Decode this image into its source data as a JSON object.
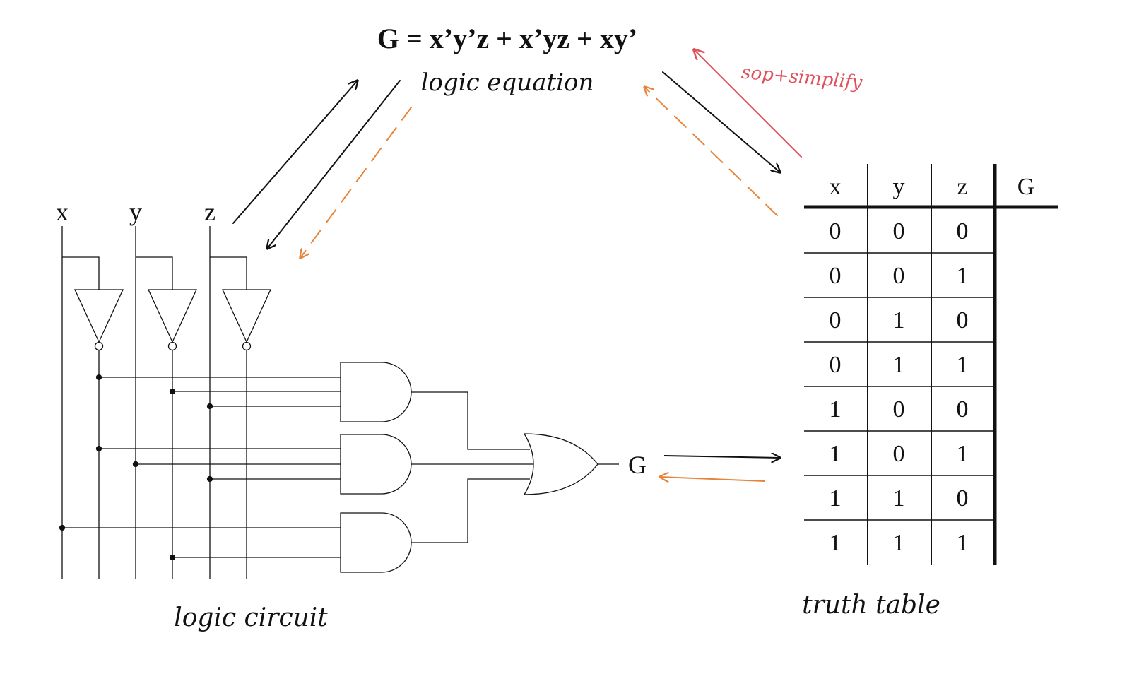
{
  "equation": "G = x’y’z + x’yz + xy’",
  "labels": {
    "equation_caption": "logic equation",
    "circuit_caption": "logic circuit",
    "table_caption": "truth table",
    "sop_simplify": "sop+simplify"
  },
  "circuit": {
    "inputs": [
      "x",
      "y",
      "z"
    ],
    "output": "G"
  },
  "truth_table": {
    "headers": [
      "x",
      "y",
      "z",
      "G"
    ],
    "rows": [
      [
        "0",
        "0",
        "0"
      ],
      [
        "0",
        "0",
        "1"
      ],
      [
        "0",
        "1",
        "0"
      ],
      [
        "0",
        "1",
        "1"
      ],
      [
        "1",
        "0",
        "0"
      ],
      [
        "1",
        "0",
        "1"
      ],
      [
        "1",
        "1",
        "0"
      ],
      [
        "1",
        "1",
        "1"
      ]
    ]
  },
  "colors": {
    "ink": "#111111",
    "orange": "#e8843a",
    "red": "#e0505a"
  }
}
